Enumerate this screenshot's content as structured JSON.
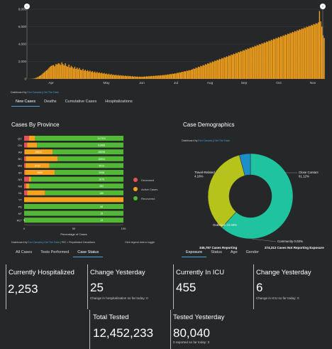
{
  "timeline": {
    "chart_data": {
      "type": "bar",
      "y_ticks": [
        "8,000",
        "6,000",
        "4,000",
        "2,000",
        "0"
      ],
      "ylim": [
        0,
        8000
      ],
      "x_ticks": [
        "Apr",
        "May",
        "Jun",
        "Jul",
        "Aug",
        "Sep",
        "Oct",
        "Nov"
      ],
      "values": [
        5,
        8,
        12,
        20,
        40,
        70,
        120,
        180,
        260,
        340,
        420,
        520,
        640,
        760,
        880,
        980,
        1100,
        1250,
        1400,
        1500,
        1550,
        1600,
        1450,
        1700,
        1650,
        1800,
        1750,
        1600,
        1900,
        1700,
        1550,
        1800,
        1500,
        1400,
        1650,
        1300,
        1500,
        1350,
        1200,
        1400,
        1150,
        1300,
        1100,
        1250,
        1050,
        1000,
        1150,
        950,
        1050,
        900,
        1000,
        850,
        950,
        800,
        900,
        750,
        850,
        700,
        800,
        680,
        750,
        650,
        720,
        600,
        680,
        560,
        620,
        520,
        600,
        480,
        550,
        450,
        500,
        420,
        480,
        400,
        450,
        380,
        420,
        360,
        400,
        340,
        380,
        320,
        360,
        300,
        340,
        280,
        320,
        260,
        300,
        250,
        280,
        240,
        270,
        230,
        260,
        240,
        280,
        260,
        300,
        280,
        320,
        300,
        340,
        320,
        360,
        340,
        380,
        360,
        400,
        380,
        420,
        400,
        450,
        430,
        480,
        460,
        520,
        500,
        560,
        540,
        600,
        580,
        640,
        620,
        700,
        680,
        760,
        740,
        820,
        800,
        880,
        860,
        940,
        920,
        1000,
        980,
        1060,
        1100,
        1200,
        1150,
        1300,
        1250,
        1400,
        1350,
        1500,
        1450,
        1600,
        1550,
        1700,
        1650,
        1800,
        1750,
        1900,
        1850,
        2000,
        1950,
        2100,
        2050,
        2200,
        2150,
        2300,
        2250,
        2400,
        2350,
        2500,
        2450,
        2600,
        2550,
        2700,
        2650,
        2800,
        2750,
        2900,
        2850,
        3000,
        2950,
        3100,
        3050,
        3200,
        3150,
        3300,
        3250,
        3400,
        3350,
        3500,
        3450,
        3600,
        3550,
        3700,
        3650,
        3800,
        3750,
        3900,
        3850,
        4000,
        3950,
        4100,
        4050,
        4200,
        4150,
        4300,
        4250,
        4400,
        4350,
        4500,
        4450,
        4600,
        4550,
        4700,
        4650,
        4800,
        4750,
        4900,
        4850,
        5000,
        4950,
        5100,
        5050,
        5200,
        5150,
        5300,
        5250,
        5400,
        5350,
        5500,
        5450,
        5600,
        5550,
        5700,
        5650,
        5800,
        5750,
        5900,
        5850,
        6000,
        5950,
        6100,
        6050,
        6200,
        6150,
        6300,
        6250,
        6400,
        6350,
        6500,
        7800,
        6600,
        6000,
        5000,
        4700
      ]
    }
  },
  "credits_top": {
    "prefix": "Dashboard by",
    "esri": "Esri Canada",
    "sep": "|",
    "getdata": "Get The Data"
  },
  "tabs_top": [
    "New Cases",
    "Deaths",
    "Cumulative Cases",
    "Hospitalizations"
  ],
  "province": {
    "title": "Cases By Province",
    "chart_data": {
      "type": "bar",
      "orientation": "horizontal",
      "stacked": true,
      "categories": [
        "QC",
        "ON",
        "AB",
        "BC",
        "MB",
        "SK",
        "NS",
        "NB",
        "NL",
        "YT",
        "PE",
        "NT",
        "RC*"
      ],
      "series": [
        {
          "name": "Deceased",
          "color": "#e4525b",
          "values": [
            5,
            3,
            0.6,
            1.8,
            1.5,
            0.8,
            5,
            2,
            3,
            0,
            0,
            0,
            0
          ]
        },
        {
          "name": "Active Cases",
          "color": "#f6a21c",
          "values": [
            6,
            10,
            28,
            32,
            24,
            30,
            2,
            3,
            18,
            100,
            0,
            0,
            0
          ]
        },
        {
          "name": "Recovered",
          "color": "#51b936",
          "values": [
            89,
            87,
            71.4,
            66.2,
            74.5,
            69.2,
            93,
            95,
            79,
            0,
            100,
            100,
            100
          ]
        }
      ],
      "data_labels": [
        "117321",
        "91966",
        "28098",
        "15904",
        "5913",
        "3998",
        "1076",
        "352",
        "180",
        "",
        "68",
        "15",
        "13"
      ],
      "inner_labels": [
        "",
        "",
        "23612",
        "",
        "8732",
        "2655",
        "",
        "",
        "",
        "",
        "",
        "",
        "5"
      ],
      "x_ticks": [
        "0",
        "50",
        "100"
      ],
      "xlabel": "Percentage of Cases",
      "xlim": [
        0,
        100
      ]
    },
    "legend_hint": "Click legend dots to toggle",
    "legend": [
      {
        "name": "Deceased",
        "color": "#e4525b"
      },
      {
        "name": "Active Cases",
        "color": "#f6a21c"
      },
      {
        "name": "Recovered",
        "color": "#51b936"
      }
    ],
    "credits": {
      "prefix": "Dashboard by",
      "esri": "Esri Canada",
      "sep": "|",
      "getdata": "Get The Data",
      "suffix": "| *RC = Repatriated Canadians"
    },
    "tabs": [
      "All Cases",
      "Tests Performed",
      "Case Status"
    ]
  },
  "demographics": {
    "title": "Case Demographics",
    "credits": {
      "prefix": "Dashboard by",
      "esri": "Esri Canada",
      "sep": "|",
      "getdata": "Get The Data"
    },
    "chart_data": {
      "type": "pie",
      "donut": true,
      "slices": [
        {
          "label": "Close Contact",
          "value": 61.12,
          "display": "Close Contact\n61.12%",
          "color": "#1fc3a0"
        },
        {
          "label": "Community",
          "value": 0.03,
          "display": "Community 0.03%",
          "color": "#888888"
        },
        {
          "label": "Outbreak",
          "value": 33.69,
          "display": "Outbreak 33.69%",
          "color": "#b5c31b"
        },
        {
          "label": "Travel-Related",
          "value": 4.16,
          "display": "Travel-Related\n4.16%",
          "color": "#1c8fc9"
        }
      ]
    },
    "reporting": "345,787 Cases Reporting",
    "not_reporting": "274,312 Cases Not Reporting Exposure",
    "tabs": [
      "Exposure",
      "Status",
      "Age",
      "Gender"
    ]
  },
  "stats": {
    "hosp": {
      "title": "Currently Hospitalized",
      "value": "2,253"
    },
    "hosp_change": {
      "title": "Change Yesterday",
      "value": "25",
      "sub": "Change in hospitalization so far today: 0"
    },
    "icu": {
      "title": "Currently In ICU",
      "value": "455"
    },
    "icu_change": {
      "title": "Change Yesterday",
      "value": "6",
      "sub": "Change in ICU so far today: 0"
    },
    "tested": {
      "title": "Total Tested",
      "value": "12,452,233"
    },
    "tested_yday": {
      "title": "Tested Yesterday",
      "value": "80,040",
      "sub": "0 reported so far today: 0"
    }
  }
}
